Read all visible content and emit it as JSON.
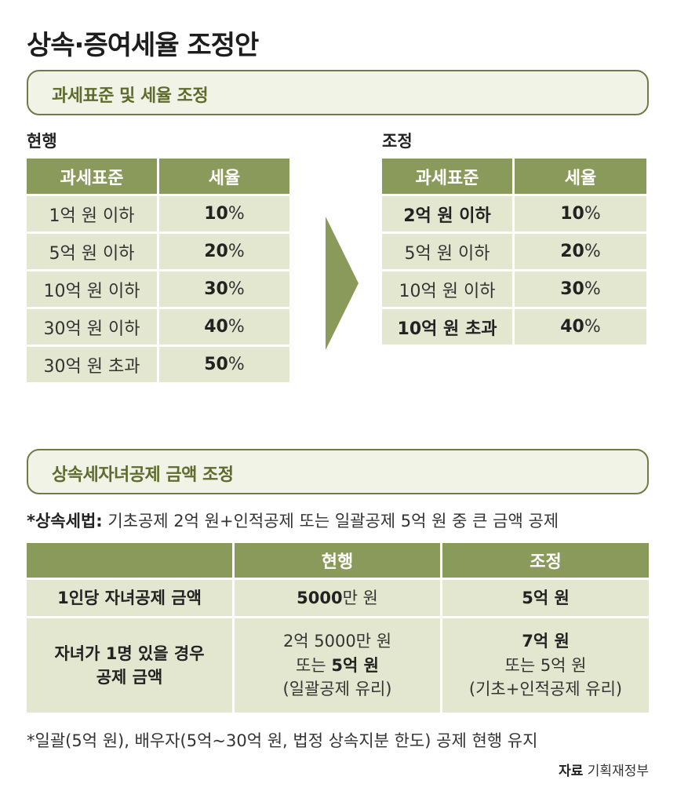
{
  "title": "상속·증여세율 조정안",
  "section1": {
    "heading": "과세표준 및 세율 조정",
    "current": {
      "label": "현행",
      "headers": [
        "과세표준",
        "세율"
      ],
      "rows": [
        {
          "bracket": "1억 원 이하",
          "rate_num": "10",
          "rate_unit": "%"
        },
        {
          "bracket": "5억 원 이하",
          "rate_num": "20",
          "rate_unit": "%"
        },
        {
          "bracket": "10억 원 이하",
          "rate_num": "30",
          "rate_unit": "%"
        },
        {
          "bracket": "30억 원 이하",
          "rate_num": "40",
          "rate_unit": "%"
        },
        {
          "bracket": "30억 원 초과",
          "rate_num": "50",
          "rate_unit": "%"
        }
      ]
    },
    "arrow_icon": "right-arrow-icon",
    "adjusted": {
      "label": "조정",
      "headers": [
        "과세표준",
        "세율"
      ],
      "rows": [
        {
          "bracket": "2억 원 이하",
          "rate_num": "10",
          "rate_unit": "%",
          "highlight": true
        },
        {
          "bracket": "5억 원 이하",
          "rate_num": "20",
          "rate_unit": "%",
          "highlight": false
        },
        {
          "bracket": "10억 원 이하",
          "rate_num": "30",
          "rate_unit": "%",
          "highlight": false
        },
        {
          "bracket": "10억 원 초과",
          "rate_num": "40",
          "rate_unit": "%",
          "highlight": true
        }
      ]
    }
  },
  "section2": {
    "heading": "상속세자녀공제 금액 조정",
    "note_prefix": "*",
    "note_bold": "상속세법:",
    "note_text": " 기초공제 2억 원+인적공제 또는 일괄공제 5억 원 중 큰 금액 공제",
    "table": {
      "headers": [
        "",
        "현행",
        "조정"
      ],
      "row1": {
        "label": "1인당 자녀공제 금액",
        "current_bold": "5000",
        "current_rest": "만 원",
        "adjusted": "5억 원"
      },
      "row2": {
        "label_line1": "자녀가 1명 있을 경우",
        "label_line2": "공제 금액",
        "current_line1": "2억 5000만 원",
        "current_line2_pre": "또는 ",
        "current_line2_bold": "5억 원",
        "current_line3": "(일괄공제 유리)",
        "adjusted_line1": "7억 원",
        "adjusted_line2": "또는 5억 원",
        "adjusted_line3": "(기초+인적공제 유리)"
      }
    },
    "footnote": "*일괄(5억 원), 배우자(5억~30억 원, 법정 상속지분 한도) 공제 현행 유지"
  },
  "source": {
    "label": "자료",
    "text": "기획재정부"
  },
  "colors": {
    "accent": "#8a9a5b",
    "cell": "#e3e7cf",
    "box_border": "#6f7a48",
    "box_text": "#5e6b2d"
  }
}
